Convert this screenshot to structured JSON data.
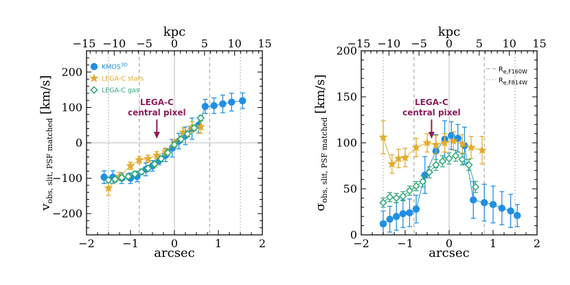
{
  "chart_data": [
    {
      "type": "scatter",
      "panel": "left",
      "xlabel": "arcsec",
      "ylabel_main": "v",
      "ylabel_sub": "obs, slit, PSF matched",
      "ylabel_unit": "[km/s]",
      "top_xlabel": "kpc",
      "xlim": [
        -2,
        2
      ],
      "ylim": [
        -260,
        260
      ],
      "xticks": [
        -2,
        -1,
        0,
        1,
        2
      ],
      "xtick_labels": [
        "−2",
        "−1",
        "0",
        "1",
        "2"
      ],
      "yticks": [
        -200,
        -100,
        0,
        100,
        200
      ],
      "ytick_labels": [
        "−200",
        "−100",
        "0",
        "100",
        "200"
      ],
      "top_ticks": [
        -15,
        -10,
        -5,
        0,
        5,
        10,
        15
      ],
      "top_tick_labels": [
        "−15",
        "−10",
        "−5",
        "0",
        "5",
        "10",
        "15"
      ],
      "kpc_per_arcsec": 7.3,
      "zero_lines": {
        "x": 0,
        "y": 0
      },
      "vlines": [
        {
          "x": -0.8,
          "style": "dashed"
        },
        {
          "x": 0.8,
          "style": "dashed"
        },
        {
          "x": -1.5,
          "style": "dotted"
        },
        {
          "x": 1.5,
          "style": "dotted"
        }
      ],
      "series": [
        {
          "name": "KMOS",
          "name_sup": "3D",
          "color": "#1f8fe5",
          "marker": "circle",
          "x": [
            -1.6,
            -1.4,
            -1.2,
            -1.0,
            -0.85,
            -0.65,
            -0.5,
            -0.35,
            -0.2,
            -0.05,
            0.1,
            0.25,
            0.4,
            0.55,
            0.7,
            0.9,
            1.1,
            1.3,
            1.55
          ],
          "y": [
            -97,
            -97,
            -100,
            -100,
            -95,
            -75,
            -65,
            -50,
            -35,
            -15,
            5,
            20,
            40,
            50,
            103,
            105,
            110,
            115,
            119
          ],
          "err": [
            18,
            18,
            15,
            15,
            15,
            18,
            15,
            12,
            18,
            25,
            22,
            25,
            30,
            22,
            20,
            22,
            25,
            25,
            22
          ]
        },
        {
          "name": "LEGA-C stars",
          "color": "#e3ab2c",
          "marker": "star",
          "x": [
            -1.5,
            -1.25,
            -1.0,
            -0.8,
            -0.6,
            -0.4,
            -0.2,
            0.0,
            0.2,
            0.4,
            0.6
          ],
          "y": [
            -128,
            -95,
            -65,
            -48,
            -45,
            -35,
            -25,
            0,
            30,
            45,
            45
          ],
          "err": [
            20,
            12,
            10,
            10,
            10,
            10,
            10,
            10,
            12,
            15,
            18
          ]
        },
        {
          "name": "LEGA-C gas",
          "color": "#35a87a",
          "marker": "diamond",
          "x": [
            -1.5,
            -1.35,
            -1.2,
            -1.05,
            -0.9,
            -0.75,
            -0.6,
            -0.45,
            -0.3,
            -0.15,
            0.0,
            0.15,
            0.3,
            0.45,
            0.6
          ],
          "y": [
            -105,
            -103,
            -98,
            -95,
            -88,
            -82,
            -72,
            -60,
            -45,
            -28,
            -5,
            10,
            25,
            42,
            70
          ],
          "err": [
            8,
            8,
            8,
            8,
            8,
            8,
            8,
            8,
            8,
            8,
            8,
            8,
            8,
            8,
            8
          ]
        }
      ],
      "annotation": {
        "lines": [
          "LEGA-C",
          "central pixel"
        ],
        "x": -0.4,
        "color": "#8b1f5a"
      }
    },
    {
      "type": "scatter",
      "panel": "right",
      "xlabel": "arcsec",
      "ylabel_main": "σ",
      "ylabel_sub": "obs, slit, PSF matched",
      "ylabel_unit": "[km/s]",
      "top_xlabel": "kpc",
      "xlim": [
        -2,
        2
      ],
      "ylim": [
        0,
        200
      ],
      "xticks": [
        -2,
        -1,
        0,
        1,
        2
      ],
      "xtick_labels": [
        "−2",
        "−1",
        "0",
        "1",
        "2"
      ],
      "yticks": [
        0,
        50,
        100,
        150,
        200
      ],
      "ytick_labels": [
        "0",
        "50",
        "100",
        "150",
        "200"
      ],
      "top_ticks": [
        -15,
        -10,
        -5,
        0,
        5,
        10,
        15
      ],
      "top_tick_labels": [
        "−15",
        "−10",
        "−5",
        "0",
        "5",
        "10",
        "15"
      ],
      "kpc_per_arcsec": 7.3,
      "zero_lines": {
        "x": 0
      },
      "vlines": [
        {
          "x": -0.8,
          "style": "dashed"
        },
        {
          "x": 0.8,
          "style": "dashed"
        },
        {
          "x": -1.5,
          "style": "dotted"
        },
        {
          "x": 1.5,
          "style": "dotted"
        }
      ],
      "line_legend": [
        {
          "label": "R",
          "sub": "e,F160W",
          "style": "dashed"
        },
        {
          "label": "R",
          "sub": "e,F814W",
          "style": "dotted"
        }
      ],
      "series": [
        {
          "name": "KMOS",
          "name_sup": "3D",
          "color": "#1f8fe5",
          "marker": "circle",
          "x": [
            -1.5,
            -1.35,
            -1.2,
            -1.05,
            -0.9,
            -0.75,
            -0.55,
            -0.3,
            -0.1,
            0.05,
            0.2,
            0.35,
            0.55,
            0.8,
            1.0,
            1.2,
            1.4,
            1.55
          ],
          "y": [
            12,
            17,
            20,
            23,
            24,
            28,
            65,
            91,
            104,
            108,
            105,
            97,
            38,
            35,
            33,
            29,
            26,
            21
          ],
          "err": [
            14,
            14,
            15,
            15,
            15,
            15,
            20,
            18,
            20,
            15,
            15,
            20,
            20,
            20,
            20,
            18,
            18,
            12
          ]
        },
        {
          "name": "LEGA-C stars",
          "color": "#e3ab2c",
          "marker": "star",
          "x": [
            -1.5,
            -1.3,
            -1.15,
            -1.0,
            -0.75,
            -0.5,
            -0.3,
            -0.1,
            0.1,
            0.3,
            0.5,
            0.75
          ],
          "y": [
            106,
            77,
            83,
            84,
            95,
            100,
            98,
            100,
            102,
            99,
            95,
            92
          ],
          "err": [
            18,
            10,
            10,
            10,
            10,
            10,
            10,
            10,
            10,
            10,
            12,
            15
          ]
        },
        {
          "name": "LEGA-C gas",
          "color": "#35a87a",
          "marker": "diamond",
          "x": [
            -1.5,
            -1.35,
            -1.2,
            -1.05,
            -0.9,
            -0.75,
            -0.6,
            -0.45,
            -0.3,
            -0.15,
            0.0,
            0.15,
            0.3,
            0.45,
            0.6
          ],
          "y": [
            35,
            41,
            40,
            42,
            48,
            53,
            58,
            68,
            76,
            80,
            83,
            86,
            82,
            76,
            52
          ],
          "err": [
            5,
            5,
            5,
            5,
            5,
            5,
            6,
            6,
            6,
            6,
            6,
            6,
            6,
            6,
            6
          ]
        }
      ],
      "annotation": {
        "lines": [
          "LEGA-C",
          "central pixel"
        ],
        "x": -0.4,
        "color": "#8b1f5a"
      }
    }
  ]
}
